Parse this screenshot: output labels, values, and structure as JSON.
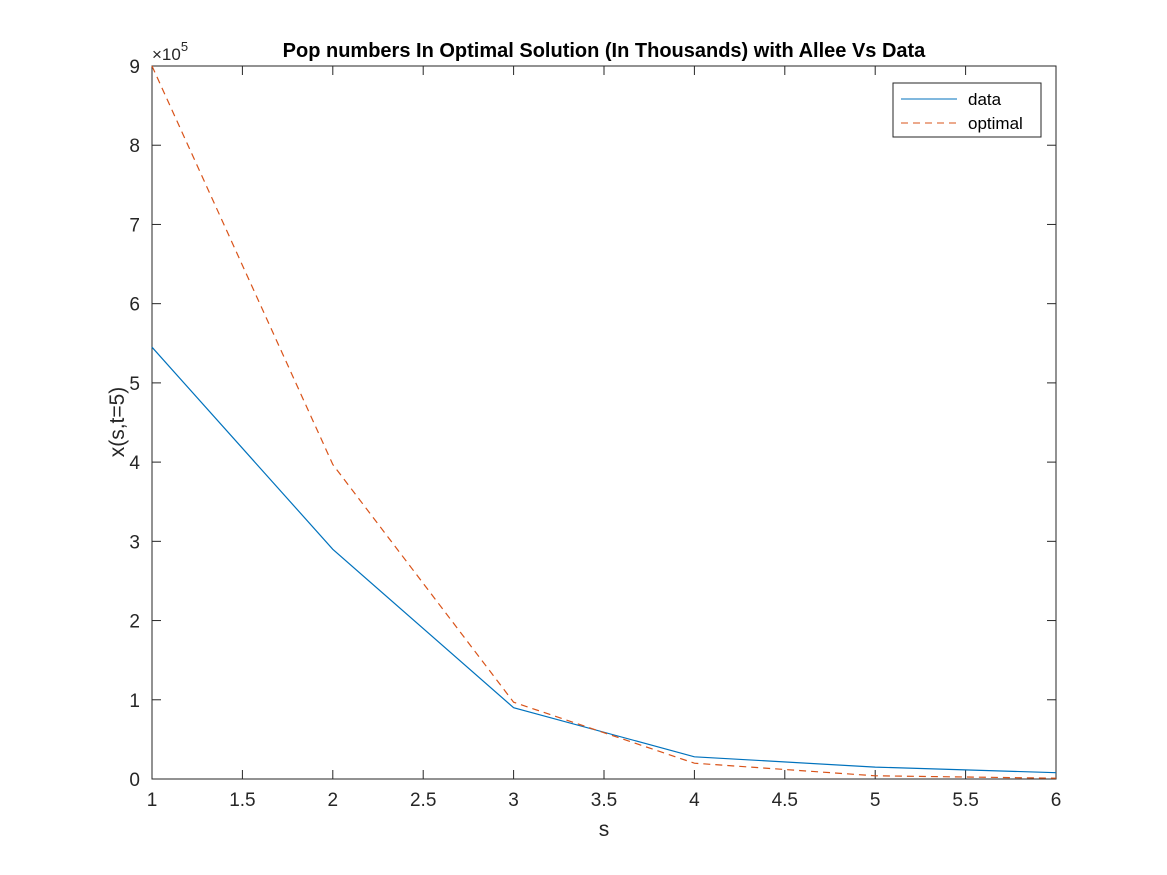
{
  "chart_data": {
    "type": "line",
    "title": "Pop numbers In Optimal Solution (In Thousands) with Allee Vs Data",
    "xlabel": "s",
    "ylabel": "x(s,t=5)",
    "xlim": [
      1,
      6
    ],
    "ylim": [
      0,
      900000
    ],
    "xticks": [
      1,
      1.5,
      2,
      2.5,
      3,
      3.5,
      4,
      4.5,
      5,
      5.5,
      6
    ],
    "xtick_labels": [
      "1",
      "1.5",
      "2",
      "2.5",
      "3",
      "3.5",
      "4",
      "4.5",
      "5",
      "5.5",
      "6"
    ],
    "yticks": [
      0,
      100000,
      200000,
      300000,
      400000,
      500000,
      600000,
      700000,
      800000,
      900000
    ],
    "ytick_labels": [
      "0",
      "1",
      "2",
      "3",
      "4",
      "5",
      "6",
      "7",
      "8",
      "9"
    ],
    "y_exponent": {
      "base": "×10",
      "power": "5"
    },
    "grid": false,
    "legend_position": "top-right",
    "x": [
      1,
      2,
      3,
      4,
      5,
      6
    ],
    "series": [
      {
        "name": "data",
        "values": [
          545000,
          290000,
          90000,
          28000,
          15000,
          8000
        ],
        "color": "#0072BD",
        "style": "solid"
      },
      {
        "name": "optimal",
        "values": [
          900000,
          397000,
          97000,
          20000,
          4000,
          1000
        ],
        "color": "#D95319",
        "style": "dashed"
      }
    ]
  }
}
